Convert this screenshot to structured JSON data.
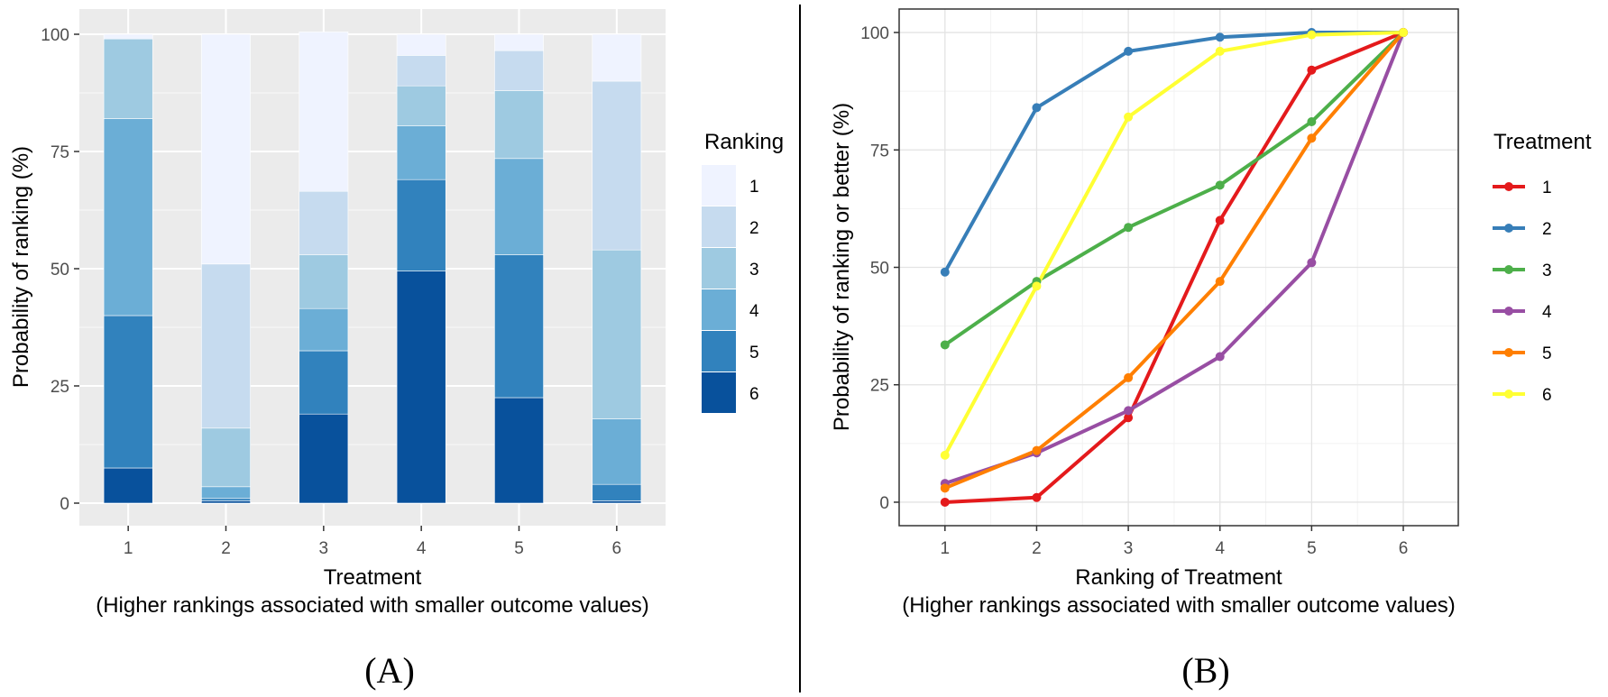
{
  "chart_data": [
    {
      "type": "bar",
      "stacked": true,
      "panel_label": "(A)",
      "xlabel": "Treatment",
      "xlabel_note": "(Higher rankings associated with smaller outcome values)",
      "ylabel": "Probability of ranking (%)",
      "ylim": [
        0,
        100
      ],
      "yticks": [
        0,
        25,
        50,
        75,
        100
      ],
      "categories": [
        "1",
        "2",
        "3",
        "4",
        "5",
        "6"
      ],
      "grid": true,
      "legend": {
        "title": "Ranking",
        "placement": "right"
      },
      "series": [
        {
          "name": "1",
          "color": "#eff3ff",
          "values": [
            1,
            49,
            34,
            4.5,
            3.5,
            10
          ]
        },
        {
          "name": "2",
          "color": "#c6dbef",
          "values": [
            0,
            35,
            13.5,
            6.5,
            8.5,
            36
          ]
        },
        {
          "name": "3",
          "color": "#9ecae1",
          "values": [
            17,
            12.5,
            11.5,
            8.5,
            14.5,
            36
          ]
        },
        {
          "name": "4",
          "color": "#6baed6",
          "values": [
            42,
            2.5,
            9,
            11.5,
            20.5,
            14
          ]
        },
        {
          "name": "5",
          "color": "#3182bd",
          "values": [
            32.5,
            0.5,
            13.5,
            19.5,
            30.5,
            3.5
          ]
        },
        {
          "name": "6",
          "color": "#08519c",
          "values": [
            7.5,
            0.5,
            19,
            49.5,
            22.5,
            0.5
          ]
        }
      ]
    },
    {
      "type": "line",
      "panel_label": "(B)",
      "xlabel": "Ranking of Treatment",
      "xlabel_note": "(Higher rankings associated with smaller outcome values)",
      "ylabel": "Probability of ranking or better (%)",
      "x": [
        1,
        2,
        3,
        4,
        5,
        6
      ],
      "xlim": [
        0.5,
        6.6
      ],
      "ylim": [
        -5,
        105
      ],
      "yticks": [
        0,
        25,
        50,
        75,
        100
      ],
      "grid": true,
      "legend": {
        "title": "Treatment",
        "placement": "right"
      },
      "series": [
        {
          "name": "1",
          "color": "#e41a1c",
          "values": [
            0,
            1,
            18,
            60,
            92,
            100
          ]
        },
        {
          "name": "2",
          "color": "#377eb8",
          "values": [
            49,
            84,
            96,
            99,
            100,
            100
          ]
        },
        {
          "name": "3",
          "color": "#4daf4a",
          "values": [
            33.5,
            47,
            58.5,
            67.5,
            81,
            100
          ]
        },
        {
          "name": "4",
          "color": "#984ea3",
          "values": [
            4,
            10.5,
            19.5,
            31,
            51,
            100
          ]
        },
        {
          "name": "5",
          "color": "#ff7f00",
          "values": [
            3,
            11,
            26.5,
            47,
            77.5,
            100
          ]
        },
        {
          "name": "6",
          "color": "#ffff33",
          "values": [
            10,
            46,
            82,
            96,
            99.5,
            100
          ]
        }
      ]
    }
  ]
}
